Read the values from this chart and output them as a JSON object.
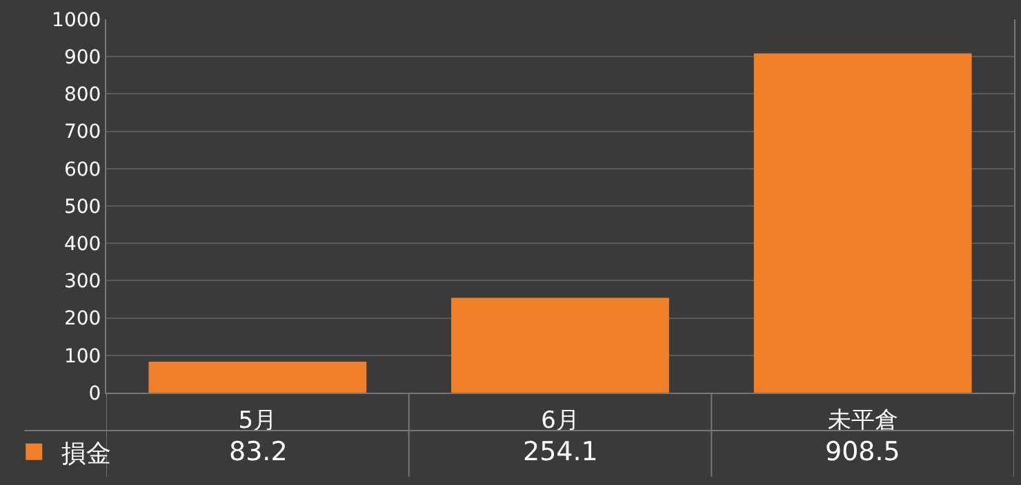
{
  "chart_data": {
    "type": "bar",
    "categories": [
      "5月",
      "6月",
      "未平倉"
    ],
    "series": [
      {
        "name": "損金",
        "color": "#f07f2a",
        "values": [
          83.2,
          254.1,
          908.5
        ]
      }
    ],
    "ylim": [
      0,
      1000
    ],
    "yticks": [
      0,
      100,
      200,
      300,
      400,
      500,
      600,
      700,
      800,
      900,
      1000
    ],
    "grid": "y",
    "legend": "bottom left",
    "data_labels": true
  }
}
